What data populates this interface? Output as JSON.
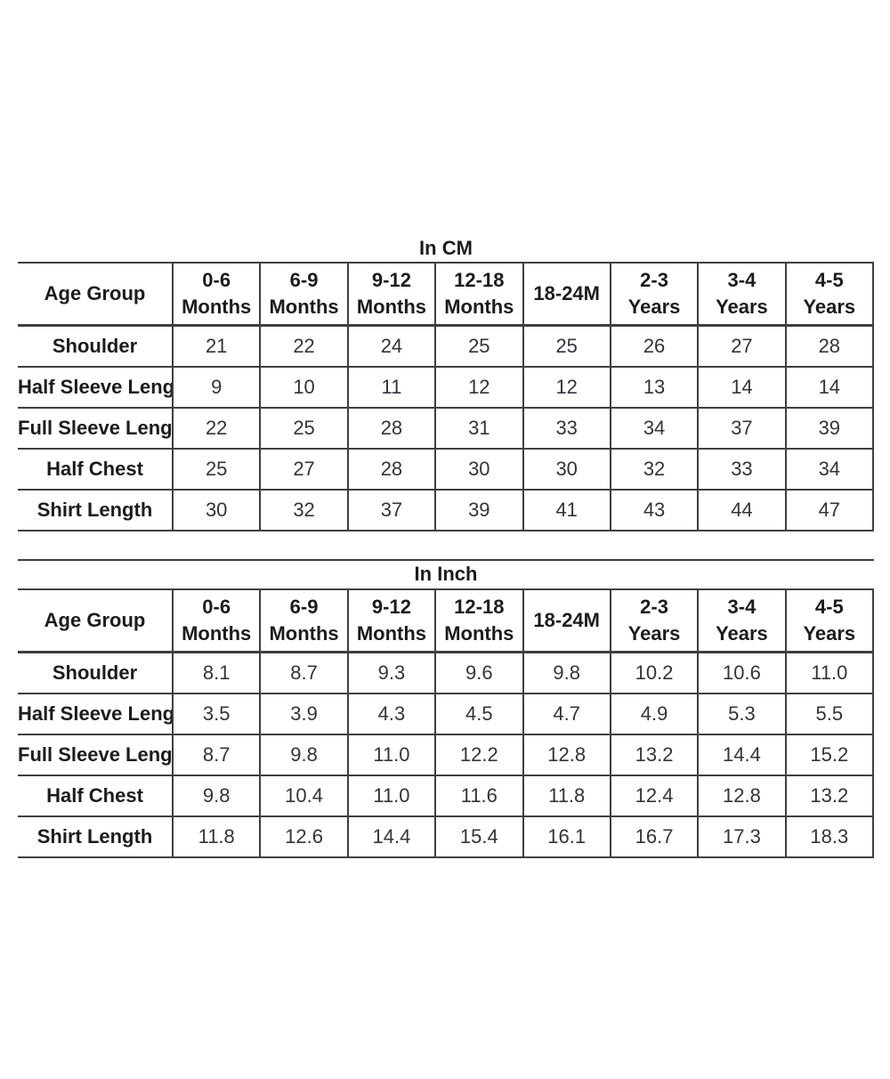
{
  "colors": {
    "background": "#ffffff",
    "border": "#3f3f3f",
    "heading_text": "#1c1c1c",
    "value_text": "#32343a"
  },
  "tables": [
    {
      "title": "In CM",
      "header": {
        "corner": "Age Group",
        "columns": [
          {
            "top": "0-6",
            "bottom": "Months"
          },
          {
            "top": "6-9",
            "bottom": "Months"
          },
          {
            "top": "9-12",
            "bottom": "Months"
          },
          {
            "top": "12-18",
            "bottom": "Months"
          },
          {
            "top": "18-24M",
            "bottom": ""
          },
          {
            "top": "2-3",
            "bottom": "Years"
          },
          {
            "top": "3-4",
            "bottom": "Years"
          },
          {
            "top": "4-5",
            "bottom": "Years"
          }
        ]
      },
      "rows": [
        {
          "label": "Shoulder",
          "values": [
            "21",
            "22",
            "24",
            "25",
            "25",
            "26",
            "27",
            "28"
          ]
        },
        {
          "label": "Half Sleeve Length",
          "values": [
            "9",
            "10",
            "11",
            "12",
            "12",
            "13",
            "14",
            "14"
          ]
        },
        {
          "label": "Full Sleeve Length",
          "values": [
            "22",
            "25",
            "28",
            "31",
            "33",
            "34",
            "37",
            "39"
          ]
        },
        {
          "label": "Half Chest",
          "values": [
            "25",
            "27",
            "28",
            "30",
            "30",
            "32",
            "33",
            "34"
          ]
        },
        {
          "label": "Shirt Length",
          "values": [
            "30",
            "32",
            "37",
            "39",
            "41",
            "43",
            "44",
            "47"
          ]
        }
      ]
    },
    {
      "title": "In Inch",
      "header": {
        "corner": "Age Group",
        "columns": [
          {
            "top": "0-6",
            "bottom": "Months"
          },
          {
            "top": "6-9",
            "bottom": "Months"
          },
          {
            "top": "9-12",
            "bottom": "Months"
          },
          {
            "top": "12-18",
            "bottom": "Months"
          },
          {
            "top": "18-24M",
            "bottom": ""
          },
          {
            "top": "2-3",
            "bottom": "Years"
          },
          {
            "top": "3-4",
            "bottom": "Years"
          },
          {
            "top": "4-5",
            "bottom": "Years"
          }
        ]
      },
      "rows": [
        {
          "label": "Shoulder",
          "values": [
            "8.1",
            "8.7",
            "9.3",
            "9.6",
            "9.8",
            "10.2",
            "10.6",
            "11.0"
          ]
        },
        {
          "label": "Half Sleeve Length",
          "values": [
            "3.5",
            "3.9",
            "4.3",
            "4.5",
            "4.7",
            "4.9",
            "5.3",
            "5.5"
          ]
        },
        {
          "label": "Full Sleeve Length",
          "values": [
            "8.7",
            "9.8",
            "11.0",
            "12.2",
            "12.8",
            "13.2",
            "14.4",
            "15.2"
          ]
        },
        {
          "label": "Half Chest",
          "values": [
            "9.8",
            "10.4",
            "11.0",
            "11.6",
            "11.8",
            "12.4",
            "12.8",
            "13.2"
          ]
        },
        {
          "label": "Shirt Length",
          "values": [
            "11.8",
            "12.6",
            "14.4",
            "15.4",
            "16.1",
            "16.7",
            "17.3",
            "18.3"
          ]
        }
      ]
    }
  ]
}
